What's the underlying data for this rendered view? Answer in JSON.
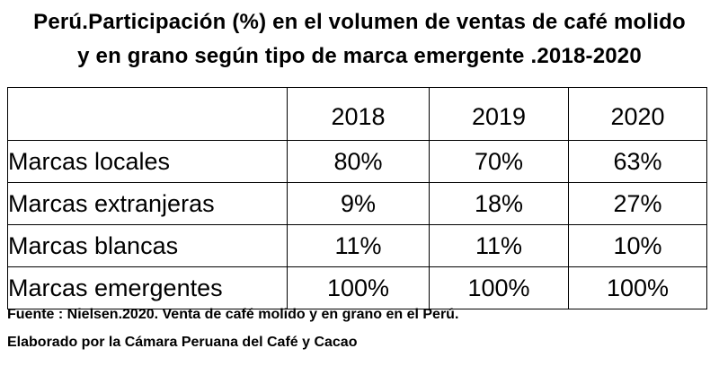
{
  "title": {
    "line1": "Perú.Participación (%) en el volumen de ventas de café molido",
    "line2": "y en grano según tipo de marca emergente .2018-2020"
  },
  "table": {
    "corner": "",
    "years": [
      "2018",
      "2019",
      "2020"
    ],
    "rows": [
      {
        "label": "Marcas locales",
        "values": [
          "80%",
          "70%",
          "63%"
        ]
      },
      {
        "label": "Marcas extranjeras",
        "values": [
          "9%",
          "18%",
          "27%"
        ]
      },
      {
        "label": "Marcas blancas",
        "values": [
          "11%",
          "11%",
          "10%"
        ]
      },
      {
        "label": "Marcas emergentes",
        "values": [
          "100%",
          "100%",
          "100%"
        ]
      }
    ]
  },
  "footer": {
    "source": "Fuente : Nielsen.2020. Venta de café molido y en grano en el Perú.",
    "credit": "Elaborado por la Cámara Peruana del Café y Cacao"
  }
}
